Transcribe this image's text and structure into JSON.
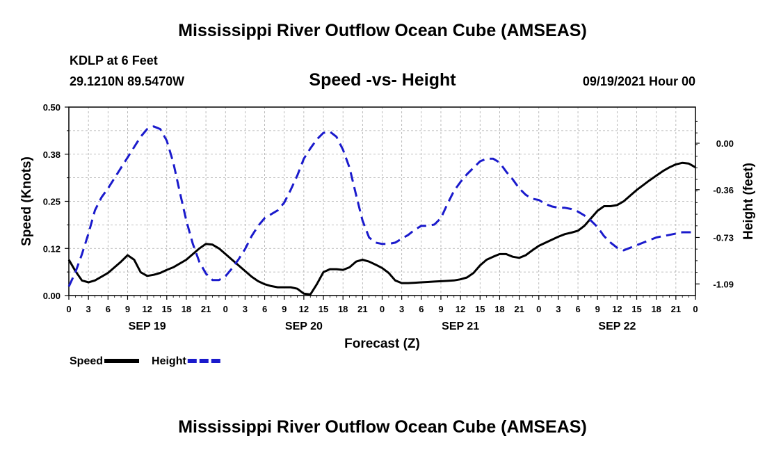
{
  "page": {
    "title_top": "Mississippi River Outflow Ocean Cube (AMSEAS)",
    "title_bottom": "Mississippi River Outflow Ocean Cube (AMSEAS)",
    "station": "KDLP at 6 Feet",
    "coords": "29.1210N  89.5470W",
    "datetime": "09/19/2021 Hour 00"
  },
  "chart_data": {
    "type": "line",
    "title": "Speed -vs- Height",
    "xlabel": "Forecast (Z)",
    "ylabel_left": "Speed (Knots)",
    "ylabel_right": "Height (feet)",
    "x_range_hours": [
      0,
      96
    ],
    "x_tick_labels": [
      "0",
      "3",
      "6",
      "9",
      "12",
      "15",
      "18",
      "21",
      "0",
      "3",
      "6",
      "9",
      "12",
      "15",
      "18",
      "21",
      "0",
      "3",
      "6",
      "9",
      "12",
      "15",
      "18",
      "21",
      "0",
      "3",
      "6",
      "9",
      "12",
      "15",
      "18",
      "21",
      "0"
    ],
    "day_labels": [
      {
        "label": "SEP 19",
        "hour": 12
      },
      {
        "label": "SEP 20",
        "hour": 36
      },
      {
        "label": "SEP 21",
        "hour": 60
      },
      {
        "label": "SEP 22",
        "hour": 84
      }
    ],
    "ylim_left": [
      0,
      0.5
    ],
    "yticks_left": [
      "0.00",
      "0.12",
      "0.25",
      "0.38",
      "0.50"
    ],
    "ylim_right": [
      -1.18,
      0.28
    ],
    "yticks_right": [
      {
        "label": "0.00",
        "value": 0.0
      },
      {
        "label": "-0.36",
        "value": -0.36
      },
      {
        "label": "-0.73",
        "value": -0.73
      },
      {
        "label": "-1.09",
        "value": -1.09
      }
    ],
    "grid": true,
    "legend": [
      {
        "name": "Speed",
        "color": "#000000",
        "dash": "solid"
      },
      {
        "name": "Height",
        "color": "#1a1acc",
        "dash": "dashed"
      }
    ],
    "series": [
      {
        "name": "Speed",
        "axis": "left",
        "color": "#000000",
        "x": [
          0,
          1,
          2,
          3,
          4,
          5,
          6,
          7,
          8,
          9,
          10,
          11,
          12,
          13,
          14,
          15,
          16,
          17,
          18,
          19,
          20,
          21,
          22,
          23,
          24,
          25,
          26,
          27,
          28,
          29,
          30,
          31,
          32,
          33,
          34,
          35,
          36,
          37,
          38,
          39,
          40,
          41,
          42,
          43,
          44,
          45,
          46,
          47,
          48,
          49,
          50,
          51,
          52,
          53,
          54,
          55,
          56,
          57,
          58,
          59,
          60,
          61,
          62,
          63,
          64,
          65,
          66,
          67,
          68,
          69,
          70,
          71,
          72,
          73,
          74,
          75,
          76,
          77,
          78,
          79,
          80,
          81,
          82,
          83,
          84,
          85,
          86,
          87,
          88,
          89,
          90,
          91,
          92,
          93,
          94,
          95,
          96
        ],
        "values": [
          0.095,
          0.065,
          0.04,
          0.035,
          0.04,
          0.05,
          0.06,
          0.075,
          0.09,
          0.107,
          0.095,
          0.062,
          0.052,
          0.055,
          0.06,
          0.068,
          0.075,
          0.085,
          0.095,
          0.11,
          0.125,
          0.137,
          0.135,
          0.125,
          0.11,
          0.095,
          0.08,
          0.065,
          0.05,
          0.038,
          0.03,
          0.025,
          0.022,
          0.022,
          0.022,
          0.018,
          0.005,
          0.003,
          0.03,
          0.062,
          0.07,
          0.07,
          0.068,
          0.075,
          0.09,
          0.095,
          0.09,
          0.082,
          0.073,
          0.06,
          0.04,
          0.033,
          0.033,
          0.034,
          0.035,
          0.036,
          0.037,
          0.038,
          0.039,
          0.04,
          0.043,
          0.048,
          0.06,
          0.08,
          0.095,
          0.103,
          0.11,
          0.11,
          0.103,
          0.1,
          0.107,
          0.12,
          0.132,
          0.14,
          0.148,
          0.156,
          0.163,
          0.167,
          0.172,
          0.185,
          0.205,
          0.225,
          0.237,
          0.237,
          0.24,
          0.25,
          0.265,
          0.28,
          0.293,
          0.306,
          0.318,
          0.33,
          0.34,
          0.348,
          0.352,
          0.35,
          0.34
        ]
      },
      {
        "name": "Height",
        "axis": "right",
        "color": "#1a1acc",
        "x": [
          0,
          1,
          2,
          3,
          4,
          5,
          6,
          7,
          8,
          9,
          10,
          11,
          12,
          13,
          14,
          15,
          16,
          17,
          18,
          19,
          20,
          21,
          22,
          23,
          24,
          25,
          26,
          27,
          28,
          29,
          30,
          31,
          32,
          33,
          34,
          35,
          36,
          37,
          38,
          39,
          40,
          41,
          42,
          43,
          44,
          45,
          46,
          47,
          48,
          49,
          50,
          51,
          52,
          53,
          54,
          55,
          56,
          57,
          58,
          59,
          60,
          61,
          62,
          63,
          64,
          65,
          66,
          67,
          68,
          69,
          70,
          71,
          72,
          73,
          74,
          75,
          76,
          77,
          78,
          79,
          80,
          81,
          82,
          83,
          84,
          85,
          86,
          87,
          88,
          89,
          90,
          91,
          92,
          93,
          94,
          95,
          96
        ],
        "values": [
          -1.11,
          -1.0,
          -0.86,
          -0.7,
          -0.52,
          -0.42,
          -0.35,
          -0.27,
          -0.19,
          -0.11,
          -0.03,
          0.05,
          0.11,
          0.13,
          0.11,
          0.02,
          -0.15,
          -0.38,
          -0.6,
          -0.78,
          -0.92,
          -1.01,
          -1.06,
          -1.06,
          -1.03,
          -0.97,
          -0.9,
          -0.82,
          -0.72,
          -0.64,
          -0.58,
          -0.55,
          -0.52,
          -0.46,
          -0.36,
          -0.25,
          -0.12,
          -0.04,
          0.03,
          0.08,
          0.09,
          0.05,
          -0.05,
          -0.19,
          -0.4,
          -0.6,
          -0.73,
          -0.77,
          -0.78,
          -0.78,
          -0.77,
          -0.74,
          -0.71,
          -0.67,
          -0.64,
          -0.64,
          -0.63,
          -0.58,
          -0.47,
          -0.37,
          -0.3,
          -0.24,
          -0.19,
          -0.14,
          -0.12,
          -0.12,
          -0.15,
          -0.22,
          -0.28,
          -0.35,
          -0.4,
          -0.43,
          -0.44,
          -0.47,
          -0.49,
          -0.5,
          -0.5,
          -0.51,
          -0.53,
          -0.56,
          -0.6,
          -0.65,
          -0.72,
          -0.77,
          -0.81,
          -0.83,
          -0.81,
          -0.79,
          -0.77,
          -0.75,
          -0.73,
          -0.72,
          -0.71,
          -0.7,
          -0.69,
          -0.69,
          -0.69
        ]
      }
    ]
  }
}
